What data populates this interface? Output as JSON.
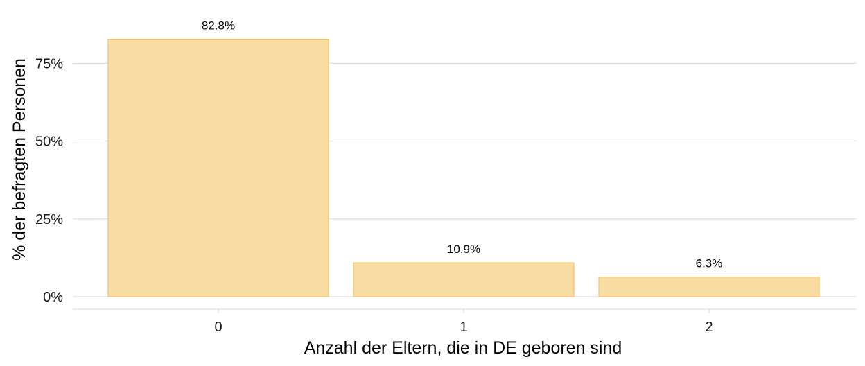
{
  "chart_data": {
    "type": "bar",
    "categories": [
      "0",
      "1",
      "2"
    ],
    "values": [
      82.8,
      10.9,
      6.3
    ],
    "data_labels": [
      "82.8%",
      "10.9%",
      "6.3%"
    ],
    "xlabel": "Anzahl der Eltern, die in DE geboren sind",
    "ylabel": "% der befragten Personen",
    "ylim": [
      0,
      86
    ],
    "yticks": [
      0,
      25,
      50,
      75
    ],
    "ytick_labels": [
      "0%",
      "25%",
      "50%",
      "75%"
    ],
    "grid": true,
    "legend": "none",
    "colors": {
      "bar_fill": "#f9dca2",
      "bar_stroke": "#f2bd55",
      "grid": "#d9d9d9"
    }
  }
}
